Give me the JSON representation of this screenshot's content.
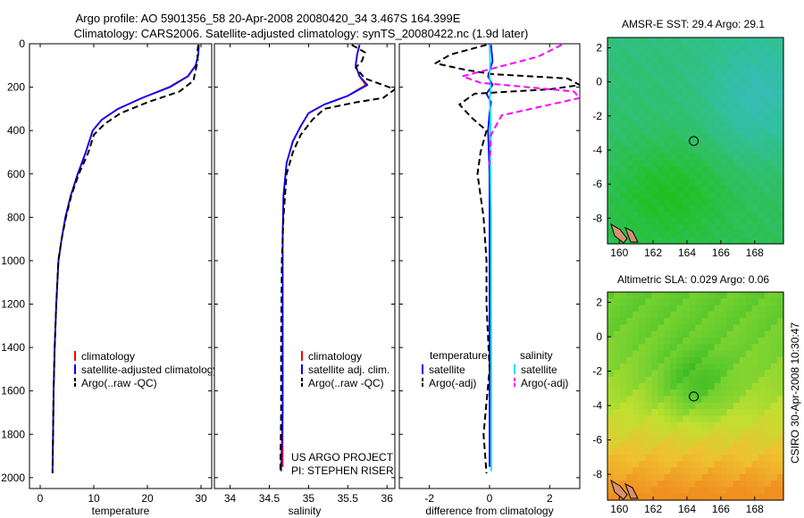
{
  "header": {
    "line1": "Argo profile: AO 5901356_58 20-Apr-2008 20080420_34 3.467S 164.399E",
    "line2": "Climatology: CARS2006. Satellite-adjusted climatology: synTS_20080422.nc (1.9d later)"
  },
  "footer": {
    "credit": "CSIRO 30-Apr-2008 10:30:47",
    "project": "US ARGO PROJECT",
    "pi": "PI: STEPHEN RISER"
  },
  "colors": {
    "climatology": "#ff0000",
    "satellite": "#0000ff",
    "argo": "#000000",
    "sat_diff": "#00e5ee",
    "argo_diff": "#ff00ff"
  },
  "chart_data": [
    {
      "type": "line",
      "id": "temperature",
      "xlabel": "temperature",
      "ylabel": "",
      "xlim": [
        -2,
        32
      ],
      "ylim": [
        2050,
        0
      ],
      "xticks": [
        0,
        10,
        20,
        30
      ],
      "yticks": [
        0,
        200,
        400,
        600,
        800,
        1000,
        1200,
        1400,
        1600,
        1800,
        2000
      ],
      "legend": [
        "climatology",
        "satellite-adjusted climatology",
        "Argo(..raw -QC)"
      ],
      "series": [
        {
          "name": "climatology",
          "style": "solid",
          "color": "#ff0000",
          "x": [
            29.6,
            29.5,
            29.0,
            27.5,
            24.0,
            19.0,
            14.5,
            11.5,
            9.8,
            8.5,
            7.0,
            5.7,
            4.7,
            4.0,
            3.4,
            3.0,
            2.7,
            2.5,
            2.4,
            2.3
          ],
          "y": [
            5,
            50,
            100,
            150,
            200,
            250,
            300,
            350,
            400,
            500,
            600,
            700,
            800,
            900,
            1000,
            1200,
            1400,
            1600,
            1800,
            1950
          ]
        },
        {
          "name": "satellite-adjusted climatology",
          "style": "solid",
          "color": "#0000ff",
          "x": [
            29.6,
            29.5,
            29.0,
            27.6,
            24.2,
            19.0,
            14.5,
            11.5,
            9.8,
            8.5,
            7.0,
            5.7,
            4.7,
            4.0,
            3.4,
            3.0,
            2.7,
            2.5,
            2.4,
            2.3
          ],
          "y": [
            5,
            50,
            100,
            150,
            200,
            250,
            300,
            350,
            400,
            500,
            600,
            700,
            800,
            900,
            1000,
            1200,
            1400,
            1600,
            1800,
            1970
          ]
        },
        {
          "name": "Argo(..raw -QC)",
          "style": "dash",
          "color": "#000000",
          "x": [
            29.5,
            29.3,
            29.4,
            29.0,
            28.6,
            26.0,
            20.0,
            15.0,
            12.0,
            10.0,
            9.0,
            7.2,
            5.8,
            4.8,
            4.0,
            3.4,
            3.0,
            2.7,
            2.5,
            2.4,
            2.3
          ],
          "y": [
            5,
            40,
            80,
            120,
            170,
            220,
            270,
            320,
            370,
            420,
            500,
            600,
            700,
            800,
            900,
            1000,
            1200,
            1400,
            1600,
            1800,
            1980
          ]
        }
      ]
    },
    {
      "type": "line",
      "id": "salinity",
      "xlabel": "salinity",
      "ylabel": "",
      "xlim": [
        33.8,
        36.1
      ],
      "ylim": [
        2050,
        0
      ],
      "xticks": [
        34,
        34.5,
        35,
        35.5,
        36
      ],
      "yticks": [
        0,
        200,
        400,
        600,
        800,
        1000,
        1200,
        1400,
        1600,
        1800,
        2000
      ],
      "legend": [
        "climatology",
        "satellite adj. clim.",
        "Argo(..raw -QC)"
      ],
      "series": [
        {
          "name": "climatology",
          "style": "solid",
          "color": "#ff0000",
          "x": [
            35.65,
            35.62,
            35.6,
            35.65,
            35.73,
            35.5,
            35.2,
            35.0,
            34.9,
            34.8,
            34.72,
            34.68,
            34.67,
            34.67,
            34.67,
            34.67,
            34.67,
            34.67
          ],
          "y": [
            5,
            50,
            100,
            150,
            190,
            240,
            280,
            320,
            380,
            450,
            550,
            700,
            900,
            1100,
            1300,
            1500,
            1700,
            1950
          ]
        },
        {
          "name": "satellite adj. clim.",
          "style": "solid",
          "color": "#0000ff",
          "x": [
            35.65,
            35.62,
            35.6,
            35.65,
            35.75,
            35.5,
            35.2,
            35.0,
            34.9,
            34.8,
            34.72,
            34.68,
            34.67,
            34.67,
            34.67,
            34.67,
            34.67,
            34.65
          ],
          "y": [
            5,
            50,
            100,
            150,
            190,
            240,
            280,
            320,
            380,
            450,
            550,
            700,
            900,
            1100,
            1300,
            1500,
            1700,
            1970
          ]
        },
        {
          "name": "Argo(..raw -QC)",
          "style": "dash",
          "color": "#000000",
          "x": [
            35.55,
            35.72,
            35.68,
            35.6,
            35.72,
            36.1,
            35.95,
            35.6,
            35.2,
            35.05,
            34.9,
            34.8,
            34.72,
            34.68,
            34.66,
            34.65,
            34.65,
            34.64
          ],
          "y": [
            5,
            40,
            80,
            110,
            160,
            210,
            250,
            270,
            300,
            350,
            420,
            500,
            600,
            800,
            1000,
            1400,
            1700,
            1980
          ]
        }
      ]
    },
    {
      "type": "line",
      "id": "difference",
      "xlabel": "difference from climatology",
      "ylabel": "",
      "xlim": [
        -3,
        3
      ],
      "ylim": [
        2050,
        0
      ],
      "xticks": [
        -2,
        0,
        2
      ],
      "yticks": [
        0,
        200,
        400,
        600,
        800,
        1000,
        1200,
        1400,
        1600,
        1800,
        2000
      ],
      "legend_titles": [
        "temperature",
        "salinity"
      ],
      "legend": [
        "satellite",
        "Argo(-adj)",
        "satellite",
        "Argo(-adj)"
      ],
      "series": [
        {
          "name": "satellite",
          "style": "solid",
          "color": "#0000ff",
          "x": [
            0.05,
            0.1,
            -0.05,
            0.1,
            -0.1,
            0.05,
            0.0,
            -0.05,
            0.0,
            0.0,
            0.0,
            0.0
          ],
          "y": [
            5,
            80,
            150,
            190,
            230,
            270,
            320,
            400,
            600,
            1000,
            1500,
            1950
          ]
        },
        {
          "name": "Argo(-adj)",
          "style": "dash",
          "color": "#000000",
          "x": [
            -0.1,
            -1.3,
            -1.8,
            -0.8,
            0.1,
            2.6,
            3.0,
            2.0,
            -0.5,
            -1.0,
            -0.6,
            -0.1,
            -0.3,
            -0.4,
            -0.3,
            -0.2,
            -0.1,
            -0.1,
            0.0,
            -0.2,
            -0.1
          ],
          "y": [
            5,
            50,
            90,
            120,
            140,
            160,
            190,
            210,
            230,
            280,
            340,
            400,
            500,
            600,
            700,
            800,
            1000,
            1200,
            1500,
            1800,
            1980
          ]
        },
        {
          "name": "satellite",
          "style": "solid",
          "color": "#00e5ee",
          "x": [
            0.0,
            0.02,
            0.0,
            0.04,
            0.0,
            0.03,
            0.02,
            0.05,
            0.05,
            0.06,
            0.06
          ],
          "y": [
            5,
            80,
            150,
            200,
            260,
            320,
            500,
            800,
            1200,
            1600,
            1970
          ]
        },
        {
          "name": "Argo(-adj)",
          "style": "dash",
          "color": "#ff00ff",
          "x": [
            2.4,
            1.6,
            -0.9,
            -0.3,
            2.8,
            3.0,
            0.4,
            0.05,
            0.0
          ],
          "y": [
            5,
            60,
            150,
            180,
            220,
            250,
            330,
            420,
            560
          ]
        }
      ]
    },
    {
      "type": "heatmap",
      "id": "amsre-sst",
      "title": "AMSR-E SST: 29.4  Argo: 29.1",
      "xlim": [
        159.3,
        169.7
      ],
      "ylim": [
        -9.5,
        2.6
      ],
      "xticks": [
        160,
        162,
        164,
        166,
        168
      ],
      "yticks": [
        2,
        0,
        -2,
        -4,
        -6,
        -8
      ],
      "marker": {
        "lon": 164.4,
        "lat": -3.47
      },
      "palette": [
        "#20c020",
        "#30c060",
        "#30c0a0",
        "#40b8d0"
      ]
    },
    {
      "type": "heatmap",
      "id": "altimetric-sla",
      "title": "Altimetric SLA: 0.029  Argo: 0.06",
      "xlim": [
        159.3,
        169.7
      ],
      "ylim": [
        -9.5,
        2.6
      ],
      "xticks": [
        160,
        162,
        164,
        166,
        168
      ],
      "yticks": [
        2,
        0,
        -2,
        -4,
        -6,
        -8
      ],
      "marker": {
        "lon": 164.4,
        "lat": -3.47
      },
      "palette": [
        "#20b020",
        "#70d030",
        "#c0e030",
        "#f0c030",
        "#f09020"
      ]
    }
  ]
}
